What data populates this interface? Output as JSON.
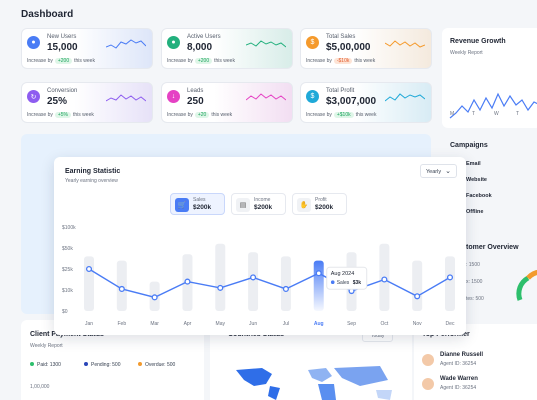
{
  "page_title": "Dashboard",
  "stats": [
    {
      "label": "New Users",
      "value": "15,000",
      "prefix": "Increase by",
      "delta": "+200",
      "suffix": "this week",
      "accent": "#4a7cf5",
      "pill_bg": "#dff6e8",
      "pill_fg": "#19a35b"
    },
    {
      "label": "Active Users",
      "value": "8,000",
      "prefix": "Increase by",
      "delta": "+200",
      "suffix": "this week",
      "accent": "#22b07d",
      "pill_bg": "#dff6e8",
      "pill_fg": "#19a35b"
    },
    {
      "label": "Total Sales",
      "value": "$5,00,000",
      "prefix": "Increase by",
      "delta": "-$10k",
      "suffix": "this week",
      "accent": "#f59a2c",
      "pill_bg": "#fde4d6",
      "pill_fg": "#e45b2c"
    },
    {
      "label": "Conversion",
      "value": "25%",
      "prefix": "Increase by",
      "delta": "+5%",
      "suffix": "this week",
      "accent": "#8e5df0",
      "pill_bg": "#dff6e8",
      "pill_fg": "#19a35b"
    },
    {
      "label": "Leads",
      "value": "250",
      "prefix": "Increase by",
      "delta": "+20",
      "suffix": "this week",
      "accent": "#e542c4",
      "pill_bg": "#dff6e8",
      "pill_fg": "#19a35b"
    },
    {
      "label": "Total Profit",
      "value": "$3,007,000",
      "prefix": "Increase by",
      "delta": "+$10k",
      "suffix": "this week",
      "accent": "#1fa9d8",
      "pill_bg": "#dff6e8",
      "pill_fg": "#19a35b"
    }
  ],
  "revenue": {
    "title": "Revenue Growth",
    "subtitle": "Weekly Report",
    "days": [
      "M",
      "T",
      "W",
      "T",
      "F"
    ]
  },
  "campaigns": {
    "title": "Campaigns",
    "items": [
      "Email",
      "Website",
      "Facebook",
      "Offline"
    ]
  },
  "customer": {
    "title": "tomer Overview",
    "rows": [
      ": 1500",
      "x: 1500",
      "tes: 500"
    ]
  },
  "earning": {
    "title": "Earning Statistic",
    "subtitle": "Yearly earning overview",
    "period": "Yearly",
    "tabs": [
      {
        "label": "Sales",
        "value": "$200k",
        "icon": "cart-icon"
      },
      {
        "label": "Income",
        "value": "$200k",
        "icon": "wallet-icon"
      },
      {
        "label": "Profit",
        "value": "$200k",
        "icon": "hand-coins-icon"
      }
    ],
    "tooltip": {
      "title": "Aug 2024",
      "series": "Sales",
      "value": "$3k"
    }
  },
  "chart_data": {
    "type": "line",
    "categories": [
      "Jan",
      "Feb",
      "Mar",
      "Apr",
      "May",
      "Jun",
      "Jul",
      "Aug",
      "Sep",
      "Oct",
      "Nov",
      "Dec"
    ],
    "yticks": [
      "$0",
      "$10k",
      "$25k",
      "$50k",
      "$100k"
    ],
    "ylim": [
      0,
      4
    ],
    "values": [
      2.0,
      1.05,
      0.65,
      1.4,
      1.1,
      1.6,
      1.05,
      1.8,
      0.95,
      1.5,
      0.7,
      1.6
    ],
    "bar_values": [
      2.6,
      2.4,
      1.4,
      2.7,
      3.2,
      2.8,
      2.6,
      2.4,
      2.8,
      3.2,
      2.4,
      2.6
    ],
    "highlight": "Aug",
    "line_color": "#4a7cf5"
  },
  "payments": {
    "title": "Client Payment Status",
    "subtitle": "Weekly Report",
    "legend": [
      {
        "label": "Paid: 1300",
        "color": "#2dbf6c"
      },
      {
        "label": "Pending: 500",
        "color": "#2a46b8"
      },
      {
        "label": "Overdue: 500",
        "color": "#f29a2e"
      }
    ],
    "ytick": "1,00,000"
  },
  "countries": {
    "title": "Countries Status",
    "filter": "Today"
  },
  "top_performer": {
    "title": "Top Performer",
    "people": [
      {
        "name": "Dianne Russell",
        "agent": "Agent ID: 36254"
      },
      {
        "name": "Wade Warren",
        "agent": "Agent ID: 36254"
      }
    ]
  }
}
